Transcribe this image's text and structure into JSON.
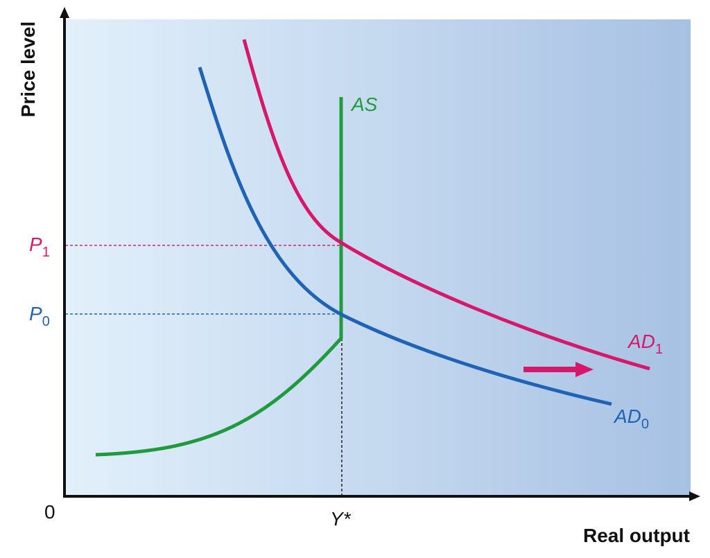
{
  "axes": {
    "y_label": "Price level",
    "x_label": "Real output",
    "origin": "0"
  },
  "labels": {
    "p1": {
      "main": "P",
      "sub": "1"
    },
    "p0": {
      "main": "P",
      "sub": "0"
    },
    "y_star": "Y*",
    "as": "AS",
    "ad1": {
      "main": "AD",
      "sub": "1"
    },
    "ad0": {
      "main": "AD",
      "sub": "0"
    }
  }
}
